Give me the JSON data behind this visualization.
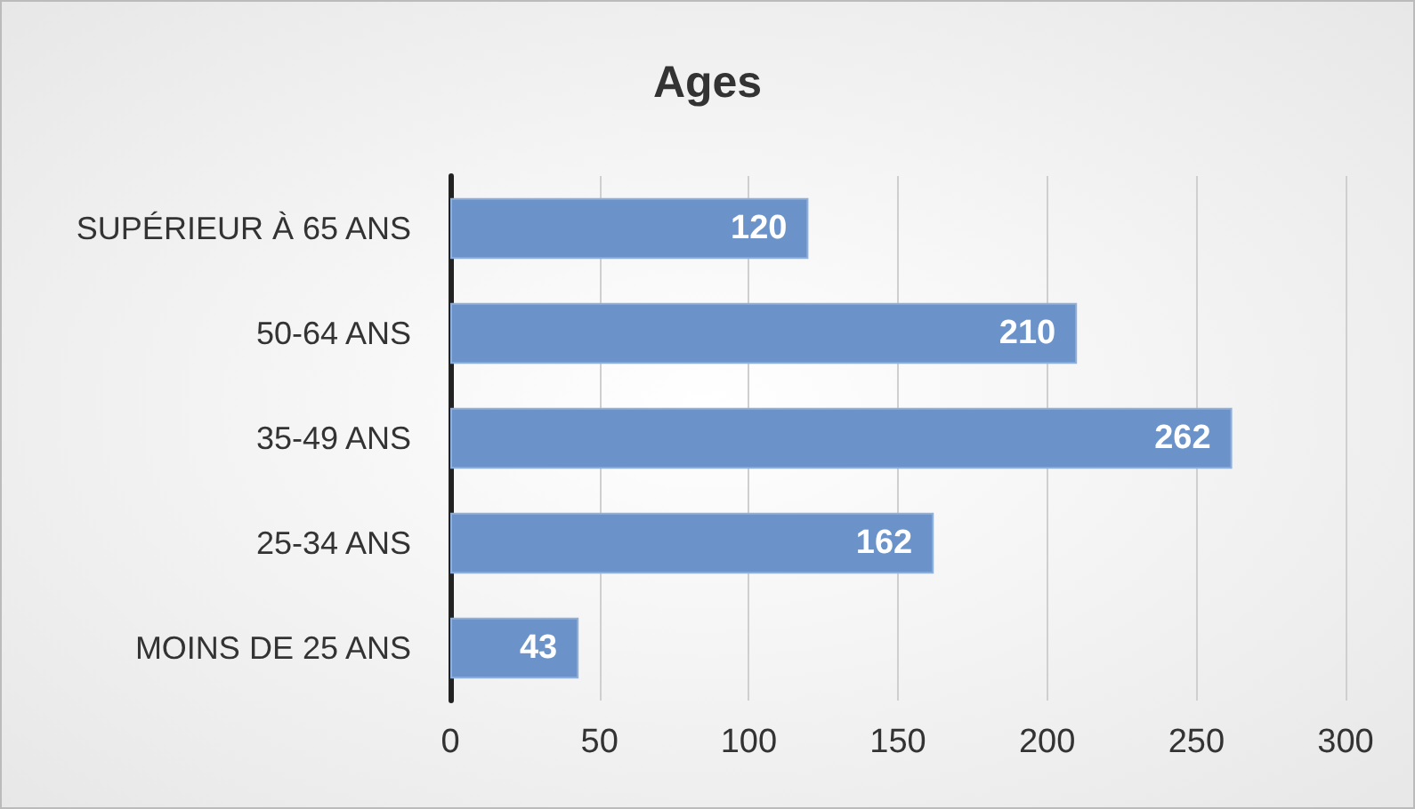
{
  "chart_data": {
    "type": "bar",
    "orientation": "horizontal",
    "title": "Ages",
    "categories": [
      "SUPÉRIEUR À 65 ANS",
      "50-64 ANS",
      "35-49 ANS",
      "25-34 ANS",
      "MOINS DE 25 ANS"
    ],
    "values": [
      120,
      210,
      262,
      162,
      43
    ],
    "color": "#6b93c9",
    "xlim": [
      0,
      300
    ],
    "xticks": [
      0,
      50,
      100,
      150,
      200,
      250,
      300
    ],
    "grid": "x",
    "data_labels": true
  }
}
